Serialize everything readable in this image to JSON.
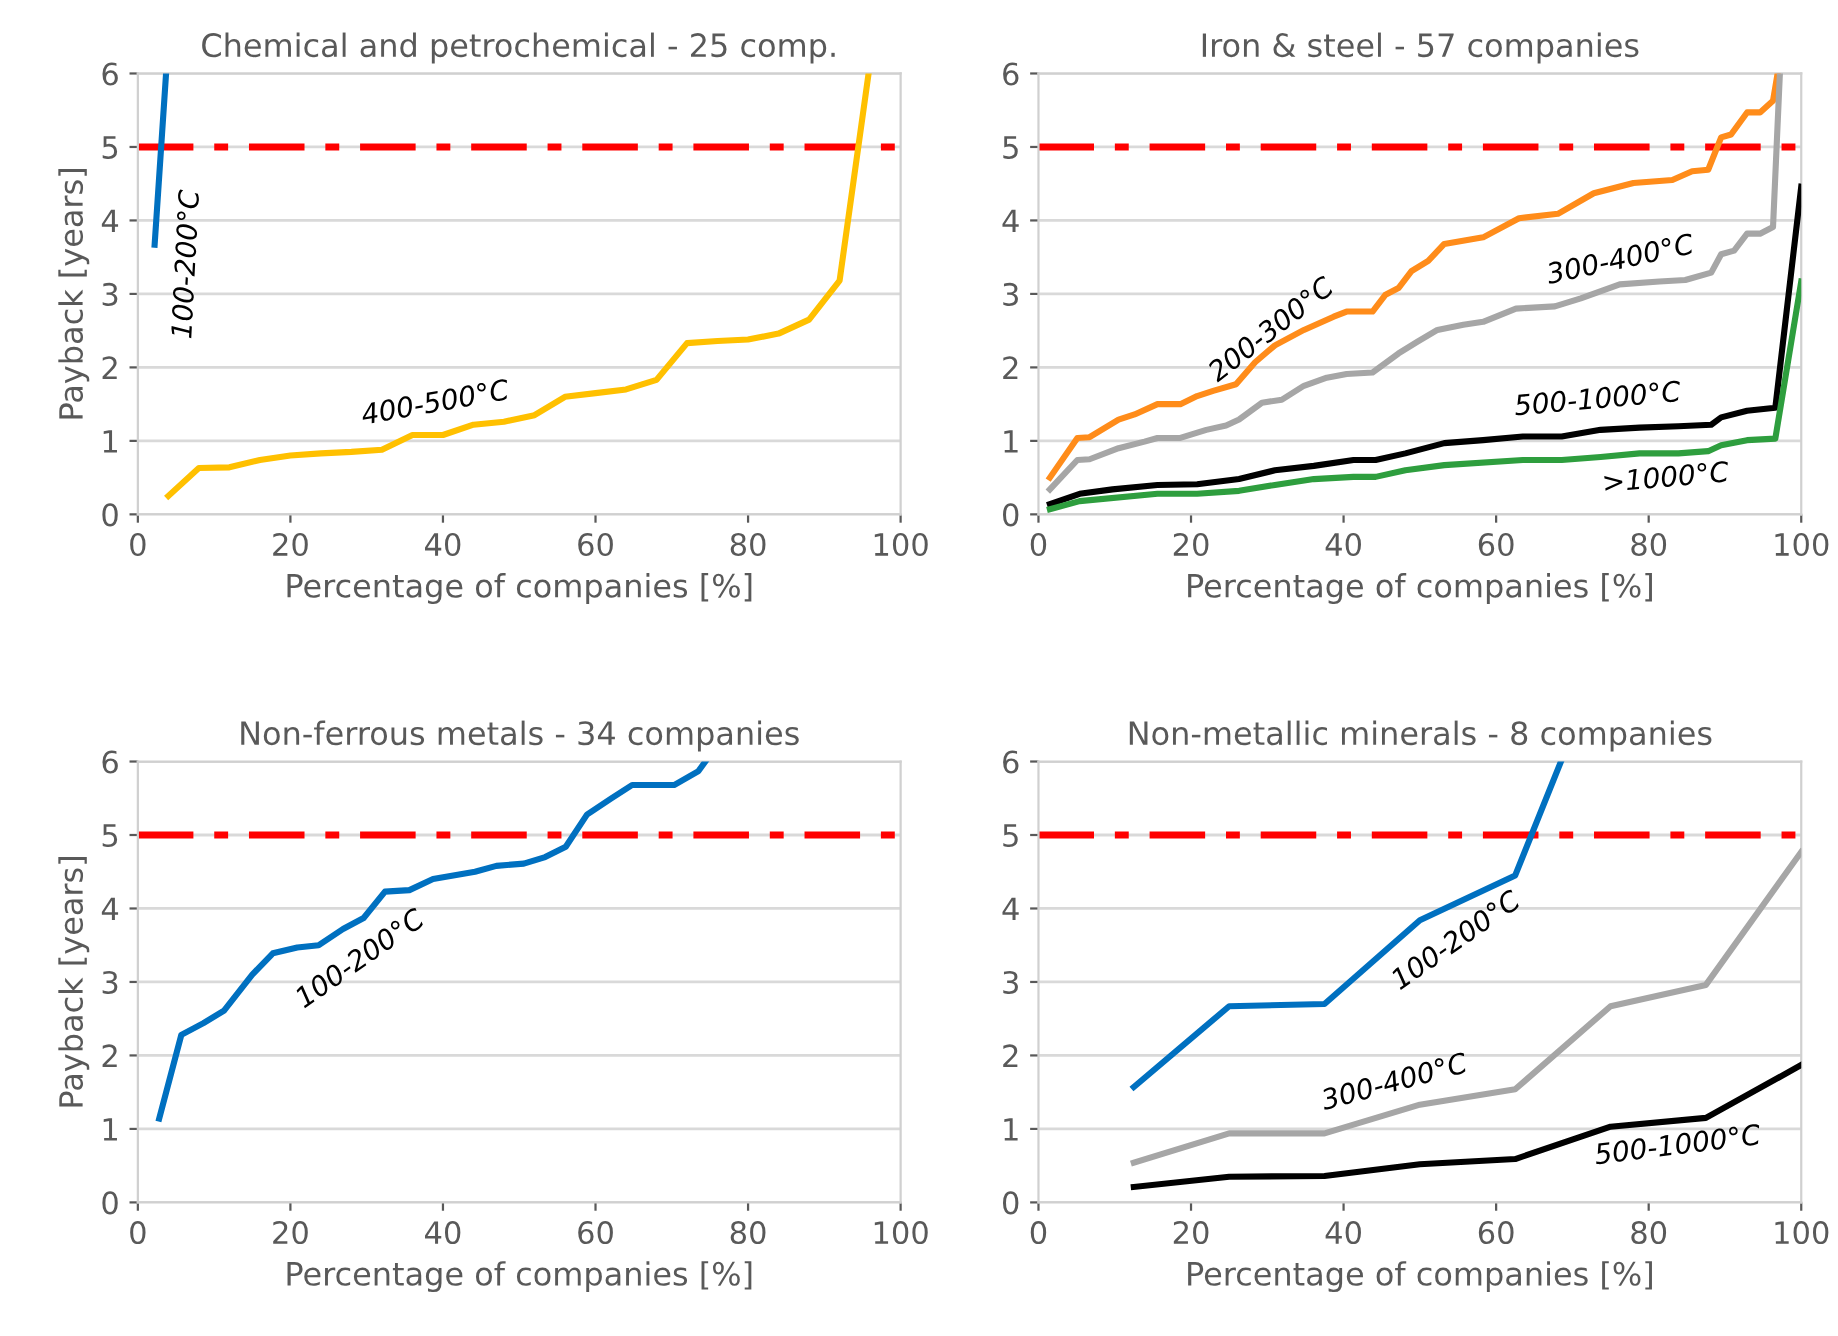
{
  "chart_data": [
    {
      "type": "line",
      "title": "Chemical and petrochemical - 25 comp.",
      "xlabel": "Percentage of companies [%]",
      "ylabel": "Payback [years]",
      "xlim": [
        0,
        100
      ],
      "xticks": [
        0,
        20,
        40,
        60,
        80,
        100
      ],
      "ylim": [
        0,
        6
      ],
      "yticks": [
        0,
        1,
        2,
        3,
        4,
        5,
        6
      ],
      "grid": "y",
      "legend": false,
      "marker": "none",
      "line_style": "solid",
      "ref_lines": [
        {
          "axis": "y",
          "value": 5,
          "color": "#ff0000",
          "line_style": "dashdot"
        }
      ],
      "series": [
        {
          "name": "100-200°C",
          "color": "#0070c0",
          "x": [
            2.2,
            3.7
          ],
          "values": [
            3.67,
            6
          ]
        },
        {
          "name": "400-500°C",
          "color": "#ffc000",
          "x": [
            4,
            8,
            12,
            16,
            20,
            24,
            28,
            32,
            36,
            40,
            44,
            48,
            52,
            56,
            60,
            64,
            68,
            72,
            76,
            80,
            84,
            88,
            92,
            95.8
          ],
          "values": [
            0.25,
            0.63,
            0.64,
            0.74,
            0.8,
            0.83,
            0.85,
            0.88,
            1.08,
            1.08,
            1.22,
            1.26,
            1.35,
            1.6,
            1.65,
            1.7,
            1.83,
            2.33,
            2.36,
            2.38,
            2.46,
            2.65,
            3.18,
            6
          ]
        }
      ]
    },
    {
      "type": "line",
      "title": "Iron & steel - 57 companies",
      "xlabel": "Percentage of companies [%]",
      "xlim": [
        0,
        100
      ],
      "xticks": [
        0,
        20,
        40,
        60,
        80,
        100
      ],
      "ylim": [
        0,
        6
      ],
      "yticks": [
        0,
        1,
        2,
        3,
        4,
        5,
        6
      ],
      "grid": "y",
      "legend": false,
      "marker": "none",
      "line_style": "solid",
      "ref_lines": [
        {
          "axis": "y",
          "value": 5,
          "color": "#ff0000",
          "line_style": "dashdot"
        }
      ],
      "series": [
        {
          "name": "200-300°C",
          "color": "#ff8c1a",
          "x": [
            1.5,
            5.1,
            6.7,
            10.5,
            12.6,
            15.6,
            18.6,
            20.8,
            22.9,
            25.9,
            28.4,
            31,
            34.8,
            38.7,
            40.4,
            43.8,
            45.5,
            47.2,
            48.9,
            51.1,
            53.2,
            58.3,
            63,
            68.1,
            72.8,
            78,
            83.1,
            85.7,
            87.8,
            89.5,
            90.8,
            92.9,
            94.6,
            96.3,
            96.9
          ],
          "values": [
            0.5,
            1.04,
            1.05,
            1.29,
            1.36,
            1.5,
            1.5,
            1.61,
            1.68,
            1.77,
            2.07,
            2.3,
            2.51,
            2.69,
            2.76,
            2.76,
            2.99,
            3.08,
            3.31,
            3.45,
            3.68,
            3.77,
            4.03,
            4.09,
            4.37,
            4.51,
            4.55,
            4.67,
            4.69,
            5.13,
            5.17,
            5.47,
            5.47,
            5.63,
            6
          ]
        },
        {
          "name": "300-400°C",
          "color": "#a6a6a6",
          "x": [
            1.5,
            5.1,
            6.7,
            10.5,
            13.9,
            15.6,
            18.6,
            22,
            24.6,
            26.3,
            29.3,
            31.9,
            34.8,
            37.8,
            40.4,
            43.8,
            47.2,
            49.7,
            52.3,
            55.7,
            58.3,
            62.6,
            67.7,
            71.1,
            76.2,
            81.4,
            84.8,
            88.2,
            89.5,
            91.2,
            92.9,
            94.6,
            96.3,
            97.2
          ],
          "values": [
            0.34,
            0.74,
            0.75,
            0.9,
            0.99,
            1.04,
            1.04,
            1.15,
            1.21,
            1.29,
            1.52,
            1.56,
            1.75,
            1.86,
            1.91,
            1.93,
            2.19,
            2.35,
            2.51,
            2.58,
            2.62,
            2.8,
            2.83,
            2.94,
            3.13,
            3.17,
            3.19,
            3.29,
            3.54,
            3.59,
            3.82,
            3.82,
            3.91,
            6
          ]
        },
        {
          "name": "500-1000°C",
          "color": "#000000",
          "x": [
            1.5,
            5.4,
            9.7,
            15.6,
            20.8,
            26.3,
            31,
            36.1,
            41.3,
            44.2,
            48.1,
            53.2,
            58.3,
            63.5,
            68.6,
            73.7,
            78.8,
            83.9,
            88.2,
            89.5,
            92.9,
            96.6,
            100
          ],
          "values": [
            0.14,
            0.28,
            0.34,
            0.4,
            0.41,
            0.48,
            0.6,
            0.66,
            0.74,
            0.74,
            0.83,
            0.97,
            1.01,
            1.06,
            1.06,
            1.15,
            1.18,
            1.2,
            1.22,
            1.32,
            1.41,
            1.45,
            4.46
          ]
        },
        {
          "name": ">1000°C",
          "color": "#2e9e3e",
          "x": [
            1.5,
            5.4,
            15.6,
            20.8,
            26.3,
            31,
            36.1,
            41.3,
            44.2,
            48.1,
            53.2,
            63.5,
            68.6,
            73.7,
            78.8,
            83.9,
            87.8,
            89.5,
            92.9,
            96.6,
            100
          ],
          "values": [
            0.07,
            0.18,
            0.28,
            0.28,
            0.32,
            0.4,
            0.48,
            0.51,
            0.51,
            0.6,
            0.67,
            0.74,
            0.74,
            0.78,
            0.83,
            0.83,
            0.86,
            0.94,
            1.01,
            1.03,
            3.17
          ]
        }
      ]
    },
    {
      "type": "line",
      "title": "Non-ferrous metals - 34 companies",
      "xlabel": "Percentage of companies [%]",
      "ylabel": "Payback [years]",
      "xlim": [
        0,
        100
      ],
      "xticks": [
        0,
        20,
        40,
        60,
        80,
        100
      ],
      "ylim": [
        0,
        6
      ],
      "yticks": [
        0,
        1,
        2,
        3,
        4,
        5,
        6
      ],
      "grid": "y",
      "legend": false,
      "marker": "none",
      "line_style": "solid",
      "ref_lines": [
        {
          "axis": "y",
          "value": 5,
          "color": "#ff0000",
          "line_style": "dashdot"
        }
      ],
      "series": [
        {
          "name": "100-200°C",
          "color": "#0070c0",
          "x": [
            2.8,
            5.7,
            8.6,
            11.3,
            15,
            17.7,
            20.9,
            23.7,
            26.9,
            29.6,
            32.4,
            35.6,
            38.7,
            44.2,
            47,
            50.6,
            53.4,
            56.1,
            58.9,
            62.1,
            64.8,
            70.3,
            73.5,
            74.4
          ],
          "values": [
            1.14,
            2.28,
            2.44,
            2.61,
            3.1,
            3.39,
            3.47,
            3.5,
            3.72,
            3.87,
            4.23,
            4.25,
            4.4,
            4.5,
            4.58,
            4.61,
            4.7,
            4.84,
            5.28,
            5.5,
            5.68,
            5.68,
            5.87,
            6
          ]
        }
      ]
    },
    {
      "type": "line",
      "title": "Non-metallic minerals - 8 companies",
      "xlabel": "Percentage of companies [%]",
      "xlim": [
        0,
        100
      ],
      "xticks": [
        0,
        20,
        40,
        60,
        80,
        100
      ],
      "ylim": [
        0,
        6
      ],
      "yticks": [
        0,
        1,
        2,
        3,
        4,
        5,
        6
      ],
      "grid": "y",
      "legend": false,
      "marker": "none",
      "line_style": "solid",
      "ref_lines": [
        {
          "axis": "y",
          "value": 5,
          "color": "#ff0000",
          "line_style": "dashdot"
        }
      ],
      "series": [
        {
          "name": "100-200°C",
          "color": "#0070c0",
          "x": [
            12.5,
            25,
            37.5,
            50,
            62.5,
            68.5
          ],
          "values": [
            1.57,
            2.67,
            2.7,
            3.84,
            4.45,
            6
          ]
        },
        {
          "name": "300-400°C",
          "color": "#a6a6a6",
          "x": [
            12.5,
            25,
            37.5,
            50,
            62.5,
            75,
            87.5,
            100
          ],
          "values": [
            0.54,
            0.94,
            0.94,
            1.33,
            1.54,
            2.67,
            2.96,
            4.77
          ]
        },
        {
          "name": "500-1000°C",
          "color": "#000000",
          "x": [
            12.5,
            25,
            37.5,
            50,
            62.5,
            75,
            87.5,
            100
          ],
          "values": [
            0.21,
            0.35,
            0.36,
            0.52,
            0.59,
            1.03,
            1.15,
            1.87
          ]
        }
      ]
    }
  ]
}
